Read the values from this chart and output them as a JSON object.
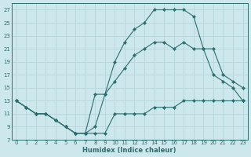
{
  "xlabel": "Humidex (Indice chaleur)",
  "xlim": [
    -0.5,
    23.5
  ],
  "ylim": [
    7,
    28
  ],
  "xticks": [
    0,
    1,
    2,
    3,
    4,
    5,
    6,
    7,
    8,
    9,
    10,
    11,
    12,
    13,
    14,
    15,
    16,
    17,
    18,
    19,
    20,
    21,
    22,
    23
  ],
  "yticks": [
    7,
    9,
    11,
    13,
    15,
    17,
    19,
    21,
    23,
    25,
    27
  ],
  "bg_color": "#cde8ec",
  "line_color": "#2d6e6e",
  "grid_color": "#b8d8dc",
  "line1_x": [
    0,
    1,
    2,
    3,
    4,
    5,
    6,
    7,
    8,
    9,
    10,
    11,
    12,
    13,
    14,
    15,
    16,
    17,
    18,
    19,
    20,
    21,
    22,
    23
  ],
  "line1_y": [
    13,
    12,
    11,
    11,
    10,
    9,
    8,
    8,
    8,
    8,
    11,
    11,
    11,
    11,
    12,
    12,
    12,
    13,
    13,
    13,
    13,
    13,
    13,
    13
  ],
  "line2_x": [
    0,
    1,
    2,
    3,
    4,
    5,
    6,
    7,
    8,
    9,
    10,
    11,
    12,
    13,
    14,
    15,
    16,
    17,
    18,
    19,
    20,
    21,
    22,
    23
  ],
  "line2_y": [
    13,
    12,
    11,
    11,
    10,
    9,
    8,
    8,
    9,
    14,
    19,
    22,
    24,
    25,
    27,
    27,
    27,
    27,
    26,
    21,
    17,
    16,
    15,
    13
  ],
  "line3_x": [
    0,
    1,
    2,
    3,
    4,
    5,
    6,
    7,
    8,
    9,
    10,
    11,
    12,
    13,
    14,
    15,
    16,
    17,
    18,
    19,
    20,
    21,
    22,
    23
  ],
  "line3_y": [
    13,
    12,
    11,
    11,
    10,
    9,
    8,
    8,
    14,
    14,
    16,
    18,
    20,
    21,
    22,
    22,
    21,
    22,
    21,
    21,
    21,
    17,
    16,
    15
  ]
}
